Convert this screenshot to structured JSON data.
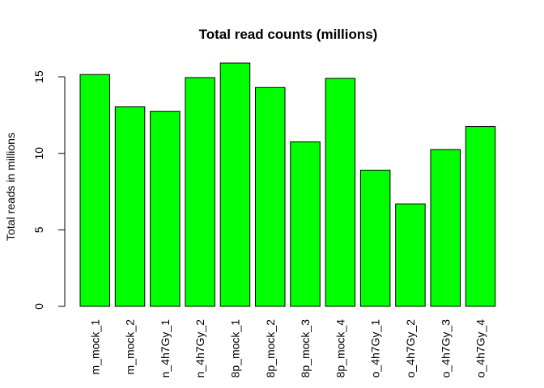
{
  "chart_data": {
    "type": "bar",
    "title": "Total read counts (millions)",
    "xlabel": "",
    "ylabel": "Total reads in millions",
    "categories": [
      "m_mock_1",
      "m_mock_2",
      "n_4h7Gy_1",
      "n_4h7Gy_2",
      "8p_mock_1",
      "8p_mock_2",
      "8p_mock_3",
      "8p_mock_4",
      "o_4h7Gy_1",
      "o_4h7Gy_2",
      "o_4h7Gy_3",
      "o_4h7Gy_4"
    ],
    "values": [
      15.15,
      13.05,
      12.75,
      14.95,
      15.9,
      14.3,
      10.75,
      14.9,
      8.9,
      6.7,
      10.25,
      11.75
    ],
    "ylim": [
      0,
      15
    ],
    "yticks": [
      "0",
      "5",
      "10",
      "15"
    ],
    "bar_color": "#00ff00",
    "grid": false
  }
}
